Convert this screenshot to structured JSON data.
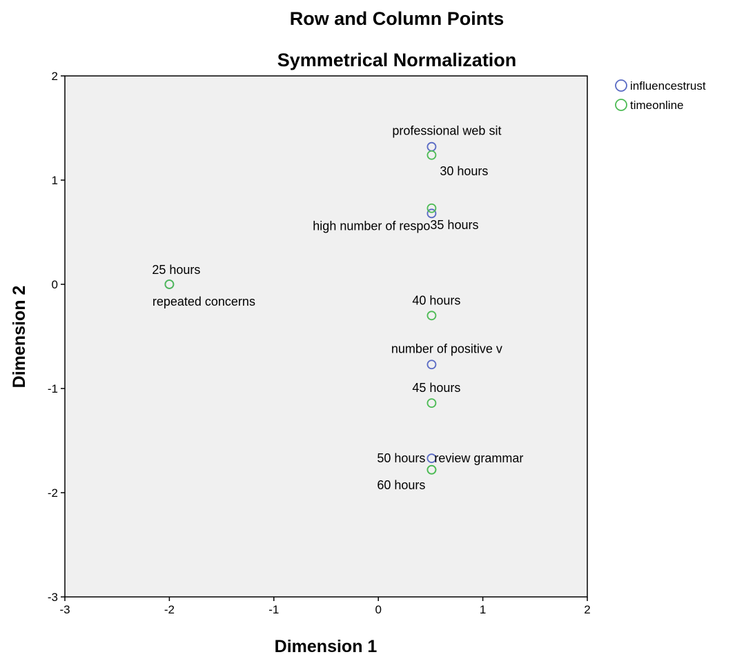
{
  "chart_data": {
    "type": "scatter",
    "title": "Row and Column Points",
    "subtitle": "Symmetrical Normalization",
    "xlabel": "Dimension 1",
    "ylabel": "Dimension 2",
    "xlim": [
      -3,
      2
    ],
    "ylim": [
      -3,
      2
    ],
    "xticks": [
      -3,
      -2,
      -1,
      0,
      1,
      2
    ],
    "yticks": [
      -3,
      -2,
      -1,
      0,
      1,
      2
    ],
    "grid": false,
    "legend_position": "top-right",
    "series": [
      {
        "name": "influencestrust",
        "color": "#5a6bc4",
        "points": [
          {
            "label": "professional web sit",
            "x": 0.51,
            "y": 1.32
          },
          {
            "label": "high number of respo",
            "x": 0.51,
            "y": 0.68
          },
          {
            "label": "repeated concerns",
            "x": -2.0,
            "y": 0.0
          },
          {
            "label": "number of positive v",
            "x": 0.51,
            "y": -0.77
          },
          {
            "label": "review grammar",
            "x": 0.51,
            "y": -1.67
          }
        ]
      },
      {
        "name": "timeonline",
        "color": "#4dbb55",
        "points": [
          {
            "label": "25 hours",
            "x": -2.0,
            "y": 0.0
          },
          {
            "label": "30 hours",
            "x": 0.51,
            "y": 1.24
          },
          {
            "label": "35 hours",
            "x": 0.51,
            "y": 0.73
          },
          {
            "label": "40 hours",
            "x": 0.51,
            "y": -0.3
          },
          {
            "label": "45 hours",
            "x": 0.51,
            "y": -1.14
          },
          {
            "label": "50 hours",
            "x": 0.51,
            "y": -1.78
          },
          {
            "label": "60 hours",
            "x": 0.51,
            "y": -1.78
          }
        ]
      }
    ]
  }
}
